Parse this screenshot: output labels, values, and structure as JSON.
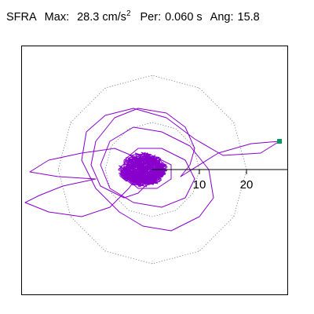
{
  "header": {
    "title": "SFRA",
    "max_label": "Max:",
    "max_value": "28.3",
    "max_unit_base": "cm/s",
    "max_unit_exp": "2",
    "per_label": "Per:",
    "per_value": "0.060 s",
    "ang_label": "Ang:",
    "ang_value": "15.8"
  },
  "chart_data": {
    "type": "scatter",
    "title": "SFRA",
    "max_acceleration": 28.3,
    "max_unit": "cm/s2",
    "period_s": 0.06,
    "angle_deg": 15.8,
    "polar_rings": [
      10,
      20
    ],
    "ring_labels": [
      "10",
      "20"
    ],
    "grid": "dotted circular rings with radial ticks",
    "trace_color": "#8800cc",
    "marker_color": "#009966",
    "trajectory_outer": [
      [
        -1.5,
        -3.5
      ],
      [
        -3,
        -5
      ],
      [
        -6,
        -6
      ],
      [
        -11,
        -3.5
      ],
      [
        -13,
        1
      ],
      [
        -12,
        6
      ],
      [
        -8,
        11
      ],
      [
        -3,
        13
      ],
      [
        3,
        12
      ],
      [
        7,
        9
      ],
      [
        9,
        4.5
      ],
      [
        8,
        1
      ],
      [
        6,
        -1.5
      ],
      [
        14,
        3.5
      ],
      [
        21,
        5.5
      ],
      [
        27,
        6
      ],
      [
        23,
        3.5
      ],
      [
        15,
        3
      ],
      [
        9,
        6.5
      ],
      [
        3,
        11
      ],
      [
        -4,
        13
      ],
      [
        -10,
        11.5
      ],
      [
        -14,
        8
      ],
      [
        -15,
        2
      ],
      [
        -12,
        -4
      ],
      [
        -7,
        -9
      ],
      [
        -2,
        -12
      ],
      [
        4,
        -13
      ],
      [
        10,
        -10
      ],
      [
        13,
        -6
      ],
      [
        12,
        0
      ],
      [
        8,
        5
      ],
      [
        2,
        8
      ],
      [
        -4,
        9
      ],
      [
        -9,
        6
      ],
      [
        -11,
        1
      ],
      [
        -9,
        -4
      ],
      [
        -4,
        -7
      ],
      [
        2,
        -8
      ],
      [
        7,
        -6
      ],
      [
        9,
        -2
      ],
      [
        7,
        2
      ],
      [
        2,
        4.5
      ],
      [
        -3,
        4.5
      ],
      [
        -6,
        2
      ],
      [
        -6,
        -1.5
      ],
      [
        -3,
        -4
      ],
      [
        1,
        -4
      ],
      [
        4,
        -2
      ],
      [
        4,
        1
      ],
      [
        1,
        2.5
      ],
      [
        -2,
        2
      ],
      [
        -3,
        0
      ],
      [
        -1,
        -1.5
      ],
      [
        1,
        -0.5
      ]
    ],
    "trajectory_west": [
      [
        -2,
        2
      ],
      [
        -8,
        4.5
      ],
      [
        -15,
        3.5
      ],
      [
        -22,
        2
      ],
      [
        -26,
        -0.5
      ],
      [
        -20,
        -1.5
      ],
      [
        -12,
        -2
      ],
      [
        -19,
        -3.5
      ],
      [
        -24,
        -5.5
      ],
      [
        -27,
        -7
      ],
      [
        -22,
        -9
      ],
      [
        -15,
        -10
      ],
      [
        -9,
        -8
      ],
      [
        -5,
        -4
      ],
      [
        -2,
        0
      ]
    ],
    "end_marker": [
      27,
      6
    ],
    "cluster_radius": 5
  }
}
